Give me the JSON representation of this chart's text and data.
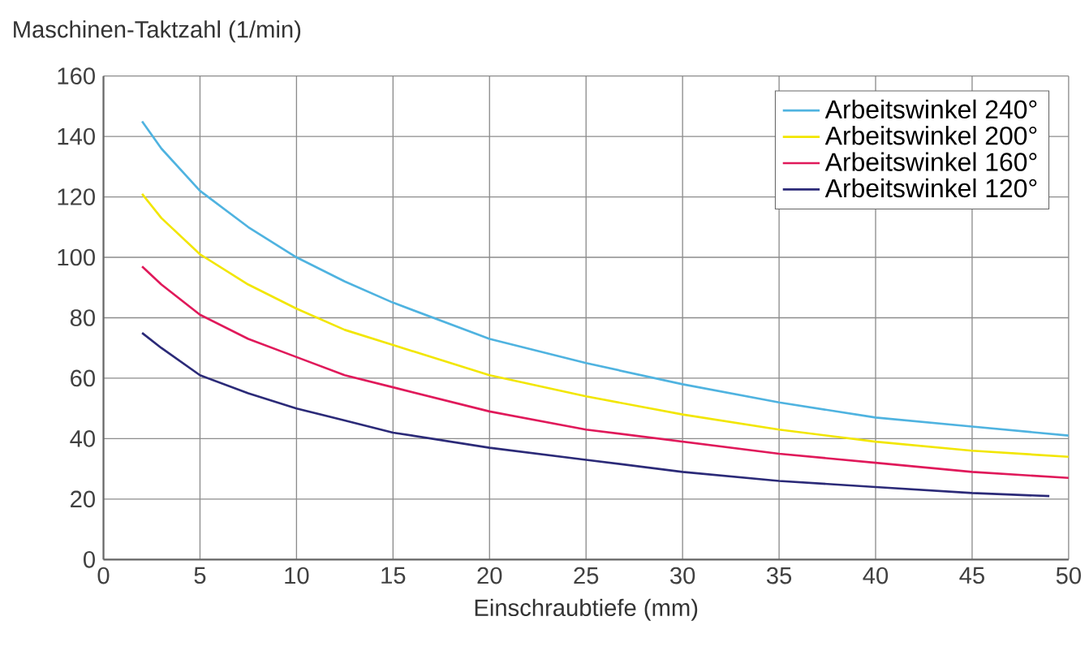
{
  "chart_data": {
    "type": "line",
    "xlabel": "Einschraubtiefe (mm)",
    "ylabel": "Maschinen-Taktzahl (1/min)",
    "xlim": [
      0,
      50
    ],
    "ylim": [
      0,
      160
    ],
    "xticks": [
      0,
      5,
      10,
      15,
      20,
      25,
      30,
      35,
      40,
      45,
      50
    ],
    "yticks": [
      0,
      20,
      40,
      60,
      80,
      100,
      120,
      140,
      160
    ],
    "grid": true,
    "legend": "top right",
    "marker": "none",
    "line_style": "solid",
    "series": [
      {
        "name": "Arbeitswinkel 240°",
        "color": "#4fb3e0",
        "x": [
          2,
          3,
          5,
          7.5,
          10,
          12.5,
          15,
          20,
          25,
          30,
          35,
          40,
          45,
          50
        ],
        "values": [
          145,
          136,
          122,
          110,
          100,
          92,
          85,
          73,
          65,
          58,
          52,
          47,
          44,
          41
        ]
      },
      {
        "name": "Arbeitswinkel 200°",
        "color": "#f2e600",
        "x": [
          2,
          3,
          5,
          7.5,
          10,
          12.5,
          15,
          20,
          25,
          30,
          35,
          40,
          45,
          50
        ],
        "values": [
          121,
          113,
          101,
          91,
          83,
          76,
          71,
          61,
          54,
          48,
          43,
          39,
          36,
          34
        ]
      },
      {
        "name": "Arbeitswinkel 160°",
        "color": "#e0195a",
        "x": [
          2,
          3,
          5,
          7.5,
          10,
          12.5,
          15,
          20,
          25,
          30,
          35,
          40,
          45,
          50
        ],
        "values": [
          97,
          91,
          81,
          73,
          67,
          61,
          57,
          49,
          43,
          39,
          35,
          32,
          29,
          27
        ]
      },
      {
        "name": "Arbeitswinkel 120°",
        "color": "#2b2a78",
        "x": [
          2,
          3,
          5,
          7.5,
          10,
          12.5,
          15,
          20,
          25,
          30,
          35,
          40,
          45,
          49
        ],
        "values": [
          75,
          70,
          61,
          55,
          50,
          46,
          42,
          37,
          33,
          29,
          26,
          24,
          22,
          21
        ]
      }
    ]
  }
}
